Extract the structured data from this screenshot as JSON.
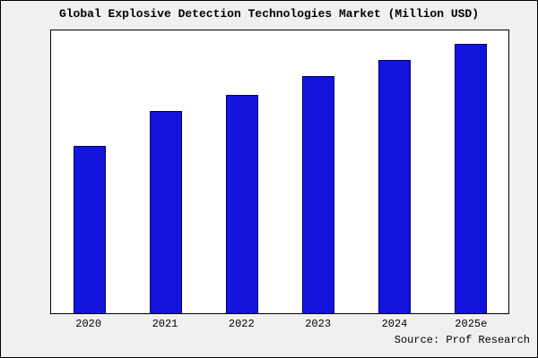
{
  "title": "Global Explosive Detection Technologies Market (Million USD)",
  "source": "Source: Prof Research",
  "chart_data": {
    "type": "bar",
    "title": "Global Explosive Detection Technologies Market (Million USD)",
    "categories": [
      "2020",
      "2021",
      "2022",
      "2023",
      "2024",
      "2025e"
    ],
    "values": [
      62,
      75,
      81,
      88,
      94,
      100
    ],
    "xlabel": "",
    "ylabel": "",
    "ylim": [
      0,
      105
    ],
    "grid": false,
    "legend": false,
    "bar_color": "#1414dd",
    "bar_border_color": "#000066"
  },
  "colors": {
    "figure_background": "#f0f0f0",
    "plot_background": "#ffffff",
    "frame_border": "#000000"
  }
}
